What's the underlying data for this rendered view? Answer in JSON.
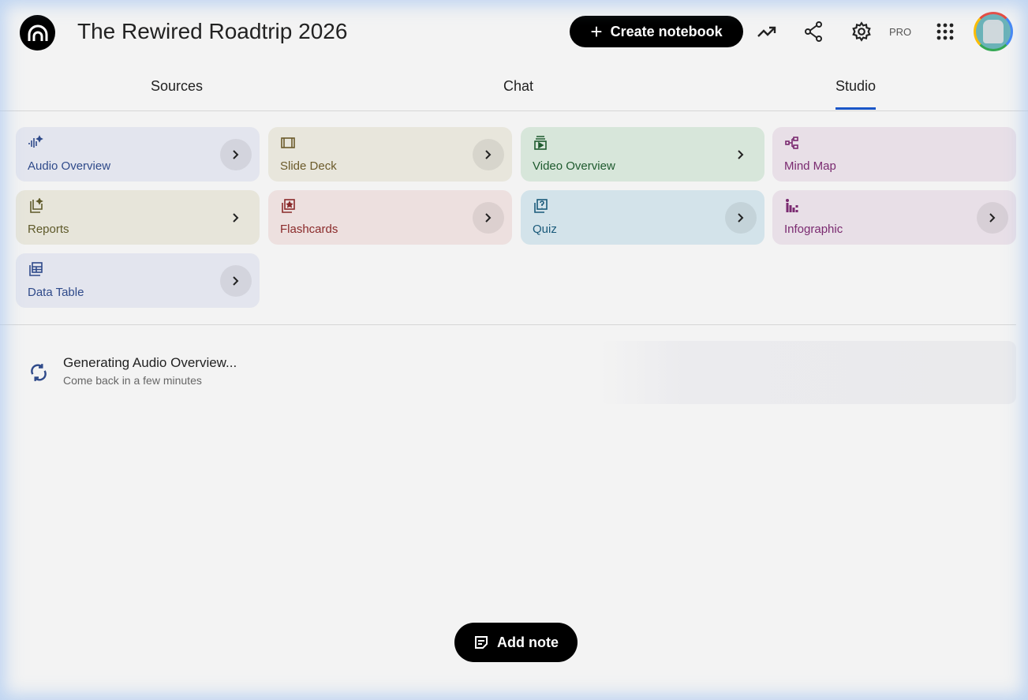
{
  "header": {
    "title": "The Rewired Roadtrip 2026",
    "create_label": "Create notebook",
    "pro_label": "PRO"
  },
  "tabs": [
    {
      "label": "Sources"
    },
    {
      "label": "Chat"
    },
    {
      "label": "Studio",
      "active": true
    }
  ],
  "studio": {
    "cards": [
      {
        "label": "Audio Overview",
        "icon": "audio-waveform-icon",
        "color": "#2f4a8a",
        "bg": "#e3e5ee"
      },
      {
        "label": "Slide Deck",
        "icon": "slides-icon",
        "color": "#6b5a2a",
        "bg": "#e8e6dc"
      },
      {
        "label": "Video Overview",
        "icon": "video-icon",
        "color": "#1e5a2e",
        "bg": "#d7e6da"
      },
      {
        "label": "Mind Map",
        "icon": "mind-map-icon",
        "color": "#7a2a70",
        "bg": "#e8dfe7"
      },
      {
        "label": "Reports",
        "icon": "reports-icon",
        "color": "#5f5a2a",
        "bg": "#e7e5da"
      },
      {
        "label": "Flashcards",
        "icon": "flashcards-icon",
        "color": "#8a2a2a",
        "bg": "#ede0df"
      },
      {
        "label": "Quiz",
        "icon": "quiz-icon",
        "color": "#1a5a7a",
        "bg": "#d3e3ea"
      },
      {
        "label": "Infographic",
        "icon": "infographic-icon",
        "color": "#7a2a70",
        "bg": "#e8dfe7"
      },
      {
        "label": "Data Table",
        "icon": "table-icon",
        "color": "#2f4a8a",
        "bg": "#e3e5ee"
      }
    ]
  },
  "generating": {
    "title": "Generating Audio Overview...",
    "subtitle": "Come back in a few minutes"
  },
  "add_note_label": "Add note",
  "colors": {
    "accent": "#1a56c8"
  }
}
